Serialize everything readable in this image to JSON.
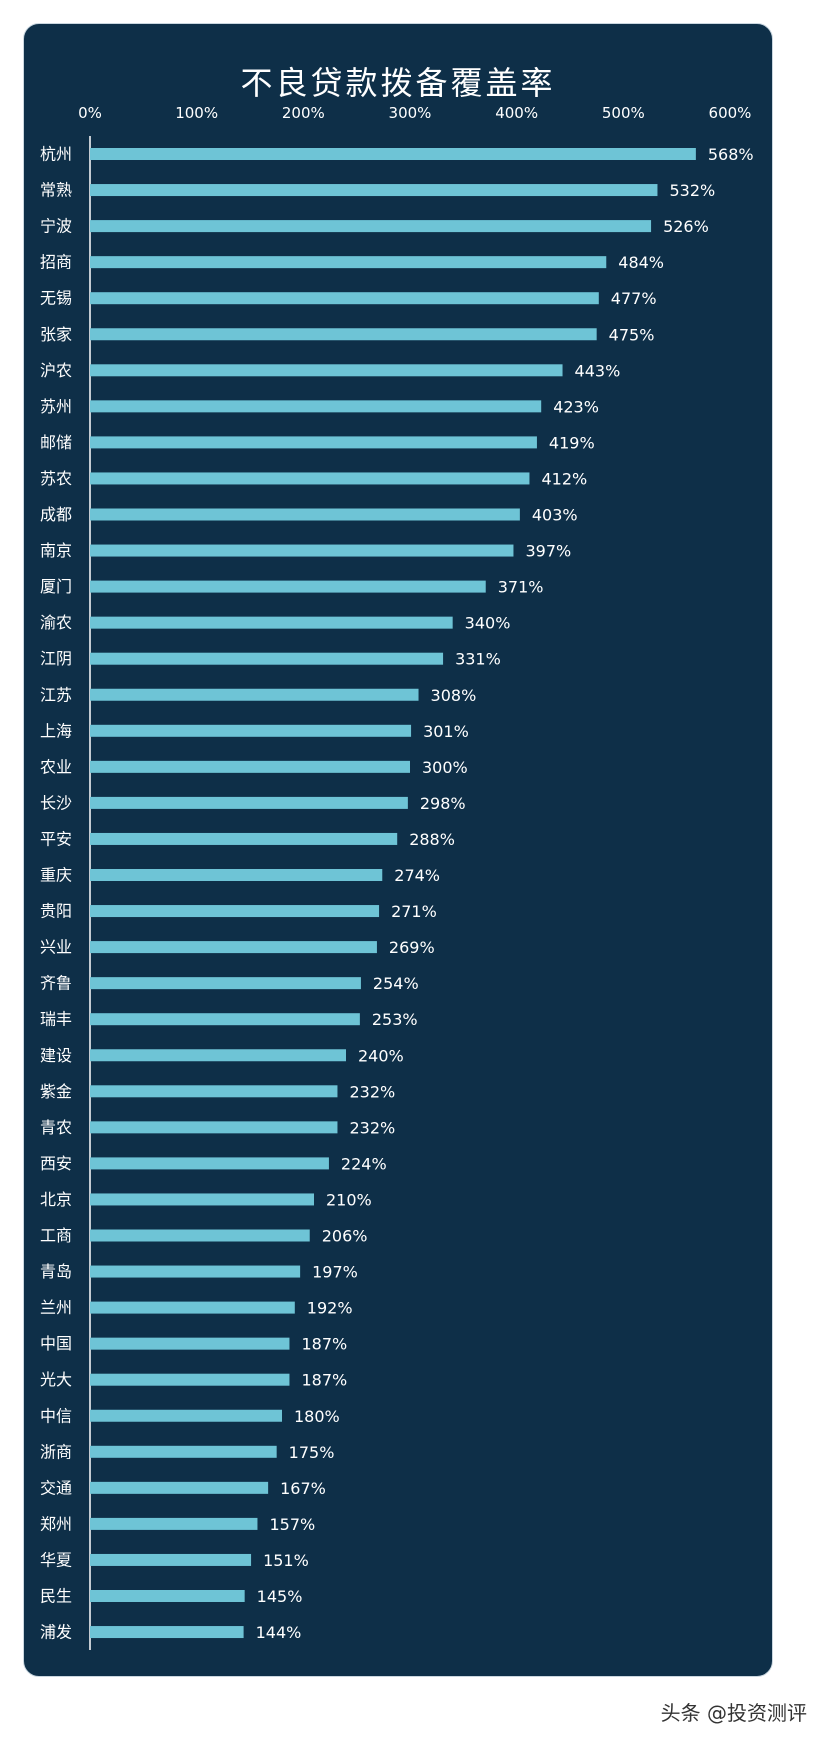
{
  "watermark": "头条 @投资测评",
  "colors": {
    "background": "#0e2f48",
    "bar": "#6ec4d6",
    "text": "#ffffff"
  },
  "chart_data": {
    "type": "bar",
    "orientation": "horizontal",
    "title": "不良贷款拨备覆盖率",
    "xlabel": "",
    "ylabel": "",
    "xlim": [
      0,
      600
    ],
    "xticks": [
      0,
      100,
      200,
      300,
      400,
      500,
      600
    ],
    "xtick_labels": [
      "0%",
      "100%",
      "200%",
      "300%",
      "400%",
      "500%",
      "600%"
    ],
    "grid": false,
    "axis_position": "top",
    "categories": [
      "杭州",
      "常熟",
      "宁波",
      "招商",
      "无锡",
      "张家",
      "沪农",
      "苏州",
      "邮储",
      "苏农",
      "成都",
      "南京",
      "厦门",
      "渝农",
      "江阴",
      "江苏",
      "上海",
      "农业",
      "长沙",
      "平安",
      "重庆",
      "贵阳",
      "兴业",
      "齐鲁",
      "瑞丰",
      "建设",
      "紫金",
      "青农",
      "西安",
      "北京",
      "工商",
      "青岛",
      "兰州",
      "中国",
      "光大",
      "中信",
      "浙商",
      "交通",
      "郑州",
      "华夏",
      "民生",
      "浦发"
    ],
    "values": [
      568,
      532,
      526,
      484,
      477,
      475,
      443,
      423,
      419,
      412,
      403,
      397,
      371,
      340,
      331,
      308,
      301,
      300,
      298,
      288,
      274,
      271,
      269,
      254,
      253,
      240,
      232,
      232,
      224,
      210,
      206,
      197,
      192,
      187,
      187,
      180,
      175,
      167,
      157,
      151,
      145,
      144
    ],
    "labels": [
      "568%",
      "532%",
      "526%",
      "484%",
      "477%",
      "475%",
      "443%",
      "423%",
      "419%",
      "412%",
      "403%",
      "397%",
      "371%",
      "340%",
      "331%",
      "308%",
      "301%",
      "300%",
      "298%",
      "288%",
      "274%",
      "271%",
      "269%",
      "254%",
      "253%",
      "240%",
      "232%",
      "232%",
      "224%",
      "210%",
      "206%",
      "197%",
      "192%",
      "187%",
      "187%",
      "180%",
      "175%",
      "167%",
      "157%",
      "151%",
      "145%",
      "144%"
    ]
  }
}
